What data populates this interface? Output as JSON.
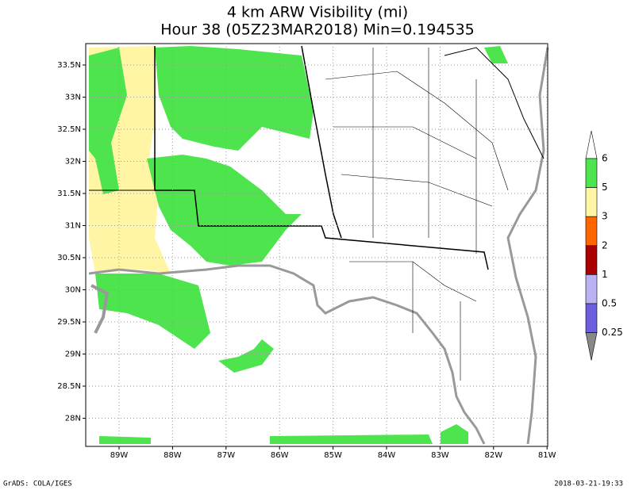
{
  "title": {
    "line1": "4 km ARW Visibility (mi)",
    "line2": "Hour 38 (05Z23MAR2018) Min=0.194535"
  },
  "axes": {
    "y_labels": [
      "33.5N",
      "33N",
      "32.5N",
      "32N",
      "31.5N",
      "31N",
      "30.5N",
      "30N",
      "29.5N",
      "29N",
      "28.5N",
      "28N"
    ],
    "x_labels": [
      "89W",
      "88W",
      "87W",
      "86W",
      "85W",
      "84W",
      "83W",
      "82W",
      "81W"
    ]
  },
  "colorbar": {
    "labels": [
      "6",
      "5",
      "3",
      "2",
      "1",
      "0.5",
      "0.25"
    ],
    "colors": [
      "#ffffff",
      "#4ee44e",
      "#fff5a5",
      "#ff6600",
      "#aa0000",
      "#b9b3f5",
      "#6b5fdc",
      "#888888"
    ]
  },
  "footer": {
    "left": "GrADS: COLA/IGES",
    "right": "2018-03-21-19:33"
  }
}
